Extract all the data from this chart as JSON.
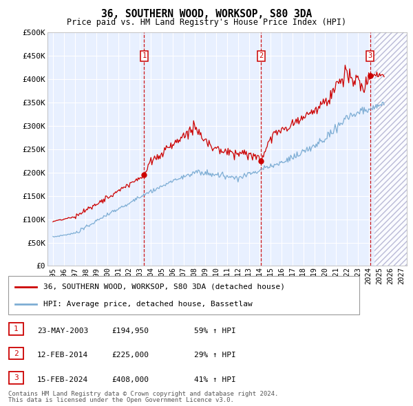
{
  "title": "36, SOUTHERN WOOD, WORKSOP, S80 3DA",
  "subtitle": "Price paid vs. HM Land Registry's House Price Index (HPI)",
  "legend_line1": "36, SOUTHERN WOOD, WORKSOP, S80 3DA (detached house)",
  "legend_line2": "HPI: Average price, detached house, Bassetlaw",
  "footer1": "Contains HM Land Registry data © Crown copyright and database right 2024.",
  "footer2": "This data is licensed under the Open Government Licence v3.0.",
  "sale_points": [
    {
      "num": 1,
      "date": "23-MAY-2003",
      "price": 194950,
      "pct": "59%",
      "x_year": 2003.38
    },
    {
      "num": 2,
      "date": "12-FEB-2014",
      "price": 225000,
      "pct": "29%",
      "x_year": 2014.12
    },
    {
      "num": 3,
      "date": "15-FEB-2024",
      "price": 408000,
      "pct": "41%",
      "x_year": 2024.12
    }
  ],
  "ylim": [
    0,
    500000
  ],
  "xlim": [
    1994.5,
    2027.5
  ],
  "yticks": [
    0,
    50000,
    100000,
    150000,
    200000,
    250000,
    300000,
    350000,
    400000,
    450000,
    500000
  ],
  "ytick_labels": [
    "£0",
    "£50K",
    "£100K",
    "£150K",
    "£200K",
    "£250K",
    "£300K",
    "£350K",
    "£400K",
    "£450K",
    "£500K"
  ],
  "xtick_years": [
    1995,
    1996,
    1997,
    1998,
    1999,
    2000,
    2001,
    2002,
    2003,
    2004,
    2005,
    2006,
    2007,
    2008,
    2009,
    2010,
    2011,
    2012,
    2013,
    2014,
    2015,
    2016,
    2017,
    2018,
    2019,
    2020,
    2021,
    2022,
    2023,
    2024,
    2025,
    2026,
    2027
  ],
  "bg_color": "#e8f0ff",
  "hatch_color": "#c0c8e0",
  "grid_color": "#ffffff",
  "red_color": "#cc0000",
  "blue_color": "#7dadd4",
  "sale_box_color": "#cc0000",
  "hatch_start": 2024.5
}
